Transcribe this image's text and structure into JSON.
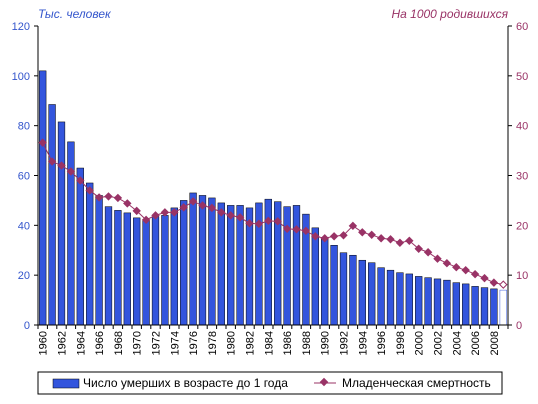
{
  "chart_data": {
    "type": "bar",
    "title": "",
    "left_axis_label": "Тыс. человек",
    "right_axis_label": "На 1000 родившихся",
    "xlabel": "",
    "x": [
      1960,
      1961,
      1962,
      1963,
      1964,
      1965,
      1966,
      1967,
      1968,
      1969,
      1970,
      1971,
      1972,
      1973,
      1974,
      1975,
      1976,
      1977,
      1978,
      1979,
      1980,
      1981,
      1982,
      1983,
      1984,
      1985,
      1986,
      1987,
      1988,
      1989,
      1990,
      1991,
      1992,
      1993,
      1994,
      1995,
      1996,
      1997,
      1998,
      1999,
      2000,
      2001,
      2002,
      2003,
      2004,
      2005,
      2006,
      2007,
      2008,
      2009
    ],
    "x_tick_labels": [
      "1960",
      "1962",
      "1964",
      "1966",
      "1968",
      "1970",
      "1972",
      "1974",
      "1976",
      "1978",
      "1980",
      "1982",
      "1984",
      "1986",
      "1988",
      "1990",
      "1992",
      "1994",
      "1996",
      "1998",
      "2000",
      "2002",
      "2004",
      "2006",
      "2008"
    ],
    "ylim_left": [
      0,
      120
    ],
    "ylim_right": [
      0,
      60
    ],
    "yticks_left": [
      "0",
      "20",
      "40",
      "60",
      "80",
      "100",
      "120"
    ],
    "yticks_right": [
      "0",
      "10",
      "20",
      "30",
      "40",
      "50",
      "60"
    ],
    "grid": false,
    "legend_position": "bottom",
    "colors": {
      "bars": "#3355dd",
      "bar_outline": "#000000",
      "line": "#993366",
      "left_axis_text": "#3355cc",
      "right_axis_text": "#993366",
      "last_bar_fill": "#ffffff"
    },
    "series": [
      {
        "name": "Число умерших в возрасте до 1 года",
        "kind": "bar",
        "axis": "left",
        "values": [
          102,
          88.5,
          81.5,
          73.5,
          63,
          57,
          52,
          47.5,
          46,
          45,
          43,
          42,
          43.5,
          44,
          47,
          50,
          53,
          52,
          51,
          49,
          48,
          48,
          47,
          49,
          50.5,
          49.5,
          47.5,
          48,
          44.5,
          39,
          35,
          32,
          29,
          28,
          26,
          25,
          23,
          22,
          21,
          20.5,
          19.5,
          19,
          18.5,
          18,
          17,
          16.5,
          15.5,
          15,
          14.5,
          14
        ]
      },
      {
        "name": "Младенческая смертность",
        "kind": "line",
        "axis": "right",
        "values": [
          36.6,
          32.8,
          32,
          30.8,
          29,
          27,
          25.6,
          25.8,
          25.5,
          24.4,
          22.9,
          21.1,
          22,
          22.6,
          22.6,
          23.6,
          24.8,
          24,
          23.5,
          22.6,
          22,
          21.6,
          20.4,
          20.3,
          20.9,
          20.8,
          19.3,
          19.2,
          18.9,
          17.8,
          17.4,
          17.8,
          18,
          19.9,
          18.6,
          18.1,
          17.4,
          17.2,
          16.5,
          16.9,
          15.3,
          14.6,
          13.3,
          12.4,
          11.6,
          11,
          10.2,
          9.4,
          8.5,
          8.1
        ]
      }
    ]
  }
}
